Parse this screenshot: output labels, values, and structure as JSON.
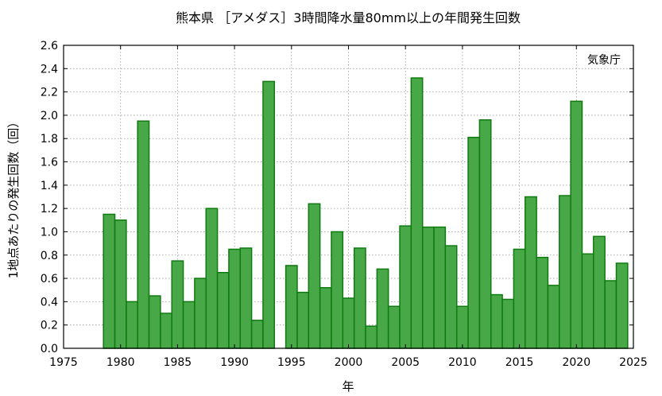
{
  "chart_data": {
    "type": "bar",
    "title": "熊本県 ［アメダス］3時間降水量80mm以上の年間発生回数",
    "xlabel": "年",
    "ylabel": "1地点あたりの発生回数（回）",
    "source_label": "気象庁",
    "xlim": [
      1975,
      2025
    ],
    "ylim": [
      0,
      2.6
    ],
    "xticks": [
      1975,
      1980,
      1985,
      1990,
      1995,
      2000,
      2005,
      2010,
      2015,
      2020,
      2025
    ],
    "xtick_labels": [
      "1975",
      "1980",
      "1985",
      "1990",
      "1995",
      "2000",
      "2005",
      "2010",
      "2015",
      "2020",
      "2025"
    ],
    "yticks": [
      0,
      0.2,
      0.4,
      0.6,
      0.8,
      1.0,
      1.2,
      1.4,
      1.6,
      1.8,
      2.0,
      2.2,
      2.4,
      2.6
    ],
    "ytick_labels": [
      "0.0",
      "0.2",
      "0.4",
      "0.6",
      "0.8",
      "1.0",
      "1.2",
      "1.4",
      "1.6",
      "1.8",
      "2.0",
      "2.2",
      "2.4",
      "2.6"
    ],
    "grid": true,
    "bar_color": "#48a848",
    "bar_edge_color": "#0f7a0f",
    "x": [
      1979,
      1980,
      1981,
      1982,
      1983,
      1984,
      1985,
      1986,
      1987,
      1988,
      1989,
      1990,
      1991,
      1992,
      1993,
      1994,
      1995,
      1996,
      1997,
      1998,
      1999,
      2000,
      2001,
      2002,
      2003,
      2004,
      2005,
      2006,
      2007,
      2008,
      2009,
      2010,
      2011,
      2012,
      2013,
      2014,
      2015,
      2016,
      2017,
      2018,
      2019,
      2020,
      2021,
      2022,
      2023,
      2024
    ],
    "values": [
      1.15,
      1.1,
      0.4,
      1.95,
      0.45,
      0.3,
      0.75,
      0.4,
      0.6,
      1.2,
      0.65,
      0.85,
      0.86,
      0.24,
      2.29,
      0.0,
      0.71,
      0.48,
      1.24,
      0.52,
      1.0,
      0.43,
      0.86,
      0.19,
      0.68,
      0.36,
      1.05,
      2.32,
      1.04,
      1.04,
      0.88,
      0.36,
      1.81,
      1.96,
      0.46,
      0.42,
      0.85,
      1.3,
      0.78,
      0.54,
      1.31,
      2.12,
      0.81,
      0.96,
      0.58,
      0.73
    ]
  }
}
